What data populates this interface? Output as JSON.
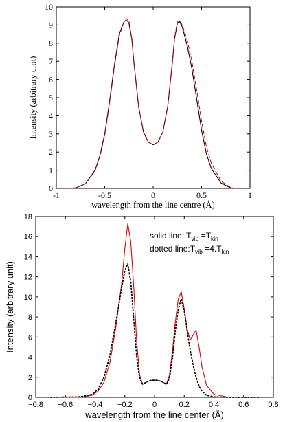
{
  "chart_data": [
    {
      "type": "line",
      "xlabel": "wavelength from the line centre (Å)",
      "ylabel": "Intensity (arbitrary unit)",
      "xlim": [
        -1,
        1
      ],
      "ylim": [
        0,
        10
      ],
      "xticks": [
        "-1",
        "-0.5",
        "0",
        "0.5",
        "1"
      ],
      "yticks": [
        "0",
        "1",
        "2",
        "3",
        "4",
        "5",
        "6",
        "7",
        "8",
        "9",
        "10"
      ],
      "grid": false,
      "series": [
        {
          "style": "solid",
          "color": "#000000",
          "x": [
            -0.85,
            -0.8,
            -0.7,
            -0.6,
            -0.55,
            -0.5,
            -0.45,
            -0.4,
            -0.35,
            -0.3,
            -0.27,
            -0.25,
            -0.22,
            -0.2,
            -0.15,
            -0.1,
            -0.05,
            0,
            0.05,
            0.1,
            0.15,
            0.2,
            0.22,
            0.25,
            0.27,
            0.3,
            0.35,
            0.4,
            0.45,
            0.5,
            0.55,
            0.6,
            0.7,
            0.8,
            0.85
          ],
          "y": [
            0,
            0.03,
            0.25,
            1.0,
            1.8,
            3.0,
            4.8,
            6.8,
            8.5,
            9.2,
            9.25,
            9.1,
            8.2,
            7.0,
            4.5,
            3.1,
            2.55,
            2.4,
            2.55,
            3.1,
            4.5,
            7.0,
            8.2,
            9.1,
            9.2,
            8.9,
            7.9,
            6.6,
            4.9,
            3.2,
            1.9,
            1.1,
            0.3,
            0.03,
            0
          ]
        },
        {
          "style": "dashed",
          "color": "#cc0000",
          "x": [
            -0.85,
            -0.8,
            -0.7,
            -0.6,
            -0.55,
            -0.5,
            -0.45,
            -0.4,
            -0.35,
            -0.3,
            -0.27,
            -0.25,
            -0.22,
            -0.2,
            -0.15,
            -0.1,
            -0.05,
            0,
            0.05,
            0.1,
            0.15,
            0.2,
            0.22,
            0.25,
            0.27,
            0.3,
            0.35,
            0.4,
            0.45,
            0.5,
            0.55,
            0.6,
            0.7,
            0.8,
            0.85
          ],
          "y": [
            0,
            0.03,
            0.25,
            0.95,
            1.75,
            2.9,
            4.7,
            6.7,
            8.4,
            9.2,
            9.35,
            9.2,
            8.25,
            7.0,
            4.5,
            3.1,
            2.55,
            2.4,
            2.55,
            3.1,
            4.5,
            7.0,
            8.25,
            9.2,
            9.25,
            9.0,
            8.2,
            7.0,
            5.4,
            3.7,
            2.3,
            1.4,
            0.4,
            0.05,
            0
          ]
        }
      ]
    },
    {
      "type": "line",
      "xlabel": "wavelength from the line center (Å)",
      "ylabel": "Intensity (arbitrary unit)",
      "xlim": [
        -0.8,
        0.8
      ],
      "ylim": [
        0,
        18
      ],
      "xticks": [
        "−0.8",
        "−0.6",
        "−0.4",
        "−0.2",
        "0",
        "0.2",
        "0.4",
        "0.6",
        "0.8"
      ],
      "yticks": [
        "0",
        "2",
        "4",
        "6",
        "8",
        "10",
        "12",
        "14",
        "16",
        "18"
      ],
      "grid": false,
      "annotations": {
        "line1_prefix": "solid line: T",
        "line1_sub1": "vib",
        "line1_mid": " =T",
        "line1_sub2": "kin",
        "line2_prefix": "dotted line:T",
        "line2_sub1": "vib",
        "line2_mid": " =4.T",
        "line2_sub2": "kin"
      },
      "series": [
        {
          "style": "solid",
          "color": "#e00000",
          "x": [
            -0.7,
            -0.5,
            -0.42,
            -0.38,
            -0.34,
            -0.3,
            -0.26,
            -0.22,
            -0.2,
            -0.18,
            -0.16,
            -0.14,
            -0.12,
            -0.1,
            -0.08,
            -0.05,
            -0.02,
            0,
            0.02,
            0.05,
            0.08,
            0.1,
            0.12,
            0.14,
            0.16,
            0.18,
            0.2,
            0.22,
            0.24,
            0.26,
            0.28,
            0.3,
            0.32,
            0.35,
            0.4,
            0.5,
            0.6,
            0.7
          ],
          "y": [
            0,
            0,
            0.2,
            0.6,
            1.5,
            3.5,
            7.0,
            11.5,
            14.8,
            17.3,
            15.5,
            11.0,
            5.5,
            2.2,
            1.3,
            1.55,
            1.7,
            1.7,
            1.7,
            1.55,
            1.3,
            2.2,
            4.5,
            7.5,
            9.8,
            10.5,
            8.8,
            6.8,
            5.7,
            6.2,
            6.7,
            5.0,
            3.0,
            1.2,
            0.3,
            0,
            0,
            0
          ]
        },
        {
          "style": "dotted",
          "color": "#000000",
          "x": [
            -0.7,
            -0.5,
            -0.42,
            -0.38,
            -0.34,
            -0.3,
            -0.26,
            -0.22,
            -0.2,
            -0.18,
            -0.16,
            -0.14,
            -0.12,
            -0.1,
            -0.08,
            -0.05,
            -0.02,
            0,
            0.02,
            0.05,
            0.08,
            0.1,
            0.12,
            0.14,
            0.16,
            0.18,
            0.2,
            0.22,
            0.24,
            0.26,
            0.28,
            0.3,
            0.32,
            0.35,
            0.4,
            0.5,
            0.6,
            0.7
          ],
          "y": [
            0,
            0.05,
            0.3,
            0.8,
            2.0,
            4.2,
            7.5,
            11.0,
            12.6,
            13.3,
            11.5,
            7.8,
            4.0,
            1.9,
            1.3,
            1.55,
            1.7,
            1.7,
            1.7,
            1.55,
            1.3,
            1.9,
            3.8,
            6.6,
            8.8,
            9.8,
            8.6,
            6.6,
            4.7,
            3.2,
            2.0,
            1.1,
            0.6,
            0.2,
            0.05,
            0,
            0,
            0
          ]
        }
      ]
    }
  ]
}
